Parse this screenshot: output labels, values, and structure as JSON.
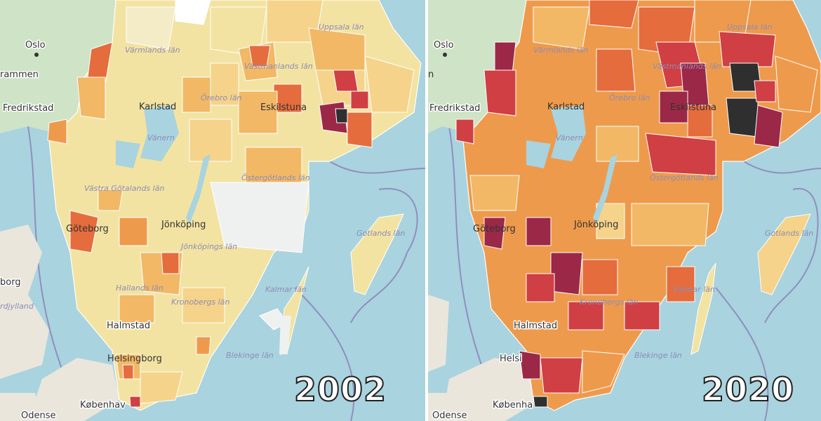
{
  "colors": {
    "sea": "#a9d3df",
    "land_other": "#eae6dc",
    "forest": "#cfe3c6",
    "border_line": "#8f8fbd",
    "scale": [
      "#f3ecc7",
      "#f3e3a2",
      "#f5d38a",
      "#f2b866",
      "#ee9a4c",
      "#e56c3d",
      "#cf3f43",
      "#9c2848",
      "#2f2f2f"
    ]
  },
  "panels": [
    {
      "year": "2002",
      "places": {
        "oslo": "Oslo",
        "drammen": "rammen",
        "fredrikstad": "Fredrikstad",
        "karlstad": "Karlstad",
        "eskilstuna": "Eskilstuna",
        "jonkoping": "Jönköping",
        "goteborg": "Göteborg",
        "halmstad": "Halmstad",
        "helsingborg": "Helsingborg",
        "kobenhavn": "Københav",
        "odense": "Odense",
        "aalborg": "borg",
        "vanern": "Vänern"
      },
      "regions": {
        "varmland": "Värmlands län",
        "vastmanland": "Västmanlands län",
        "orebro": "Örebro län",
        "uppsala": "Uppsala län",
        "ostergotland": "Östergötlands län",
        "vastra_gotaland": "Västra Götalands län",
        "jonkopings_lan": "Jönköpings län",
        "kronoberg": "Kronobergs län",
        "kalmar": "Kalmar län",
        "halland": "Hallands län",
        "blekinge": "Blekinge län",
        "gotland": "Gotlands län",
        "nordjylland": "rdjylland"
      }
    },
    {
      "year": "2020",
      "places": {
        "oslo": "Oslo",
        "drammen": "n",
        "fredrikstad": "Fredrikstad",
        "karlstad": "Karlstad",
        "eskilstuna": "Eskilstuna",
        "jonkoping": "Jönköping",
        "goteborg": "Göteborg",
        "halmstad": "Halmstad",
        "helsingborg": "Helsi",
        "kobenhavn": "Københa",
        "odense": "Odense",
        "vanern": "Vänern"
      },
      "regions": {
        "varmland": "Värmlands län",
        "vastmanland": "Västmanlands län",
        "orebro": "Örebro län",
        "uppsala": "Uppsala län",
        "ostergotland": "Östergötlands län",
        "kronoberg": "Kronobergs län",
        "kalmar": "Kalmar län",
        "blekinge": "Blekinge län",
        "gotland": "Gotlands län"
      }
    }
  ]
}
